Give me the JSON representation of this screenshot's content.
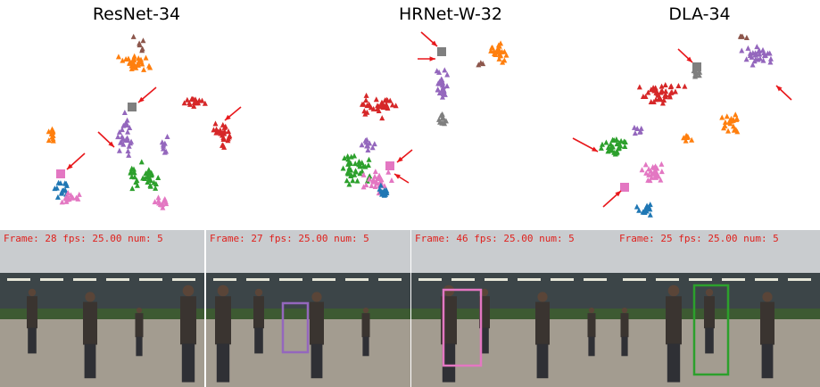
{
  "panels": [
    {
      "title": "ResNet-34"
    },
    {
      "title": "HRNet-W-32"
    },
    {
      "title": "DLA-34"
    }
  ],
  "frames": [
    {
      "overlay": "Frame: 28  fps: 25.00  num: 5"
    },
    {
      "overlay": "Frame: 27  fps: 25.00  num: 5"
    },
    {
      "overlay": "Frame: 46  fps: 25.00  num: 5"
    },
    {
      "overlay": "Frame: 25  fps: 25.00  num: 5"
    }
  ]
}
